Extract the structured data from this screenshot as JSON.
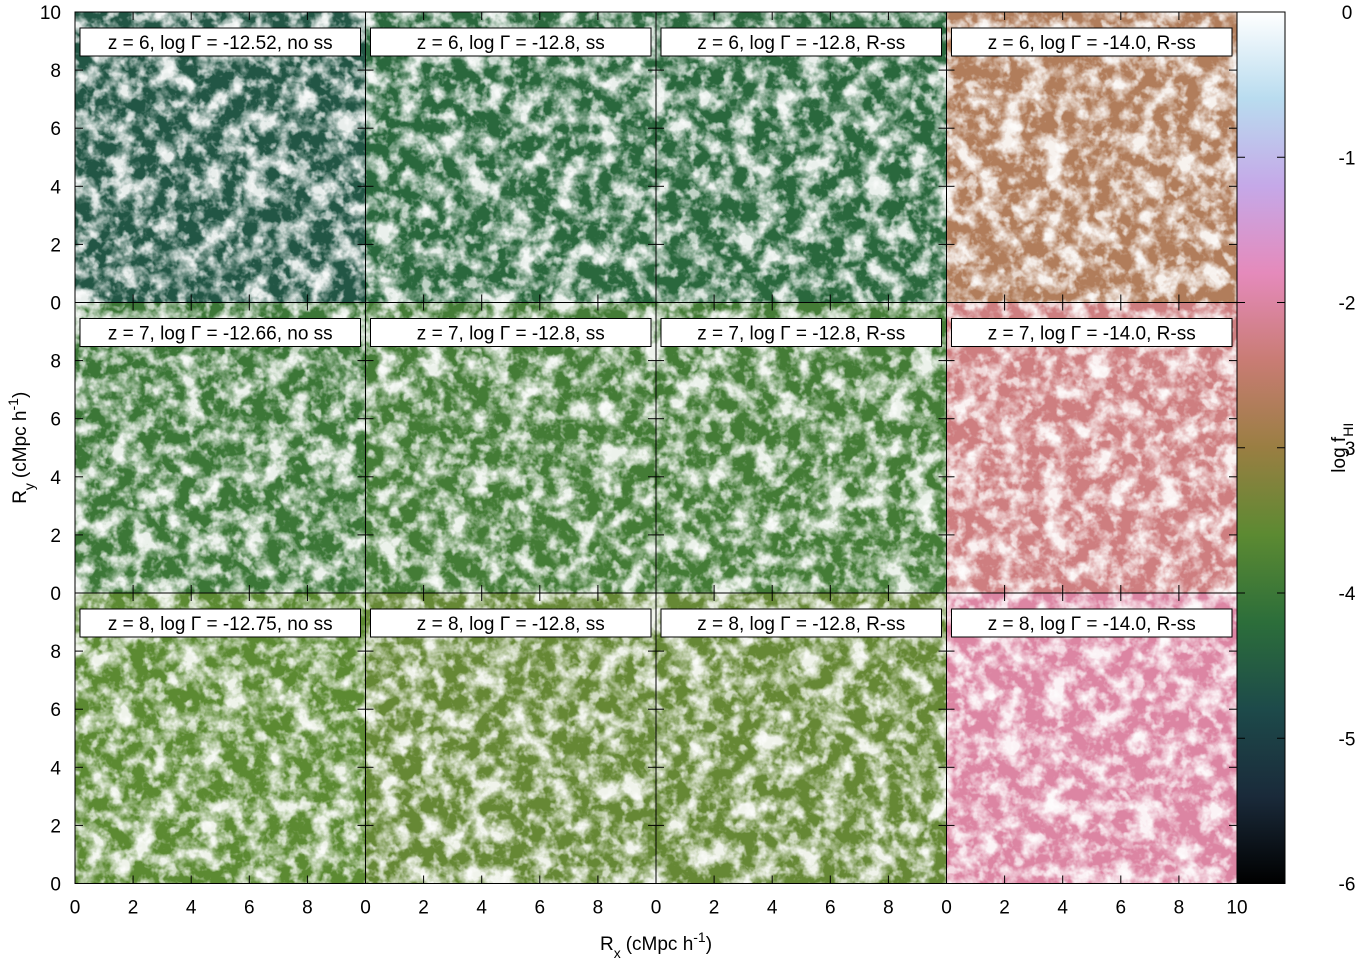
{
  "chart_data": {
    "type": "heatmap",
    "layout": {
      "rows": 3,
      "cols": 4
    },
    "xlabel": "R",
    "xlabel_sub": "x",
    "xlabel_unit": "(cMpc h",
    "xlabel_unit_sup": "-1",
    "xlabel_unit_close": ")",
    "ylabel": "R",
    "ylabel_sub": "y",
    "ylabel_unit": "(cMpc h",
    "ylabel_unit_sup": "-1",
    "ylabel_unit_close": ")",
    "xlim": [
      0,
      10
    ],
    "ylim": [
      0,
      10
    ],
    "x_ticks": [
      "0",
      "2",
      "4",
      "6",
      "8"
    ],
    "x_ticks_last_panel": [
      "0",
      "2",
      "4",
      "6",
      "8",
      "10"
    ],
    "y_ticks": [
      "0",
      "2",
      "4",
      "6",
      "8"
    ],
    "y_ticks_top_panel": [
      "0",
      "2",
      "4",
      "6",
      "8",
      "10"
    ],
    "colorbar": {
      "label": "log f",
      "label_sub": "HI",
      "range": [
        -6,
        0
      ],
      "ticks": [
        "0",
        "-1",
        "-2",
        "-3",
        "-4",
        "-5",
        "-6"
      ],
      "colors": [
        "#000000",
        "#1a2a3a",
        "#1d4a4a",
        "#2c6e3a",
        "#5c8a32",
        "#9a7e42",
        "#c97c74",
        "#e58abb",
        "#c5a8e8",
        "#b9dcef",
        "#ffffff"
      ]
    },
    "panels": [
      {
        "title": "z = 6, log Γ = -12.52, no ss",
        "z": 6,
        "log_gamma": -12.52,
        "model": "no ss",
        "mean_log_fHI": -4.6
      },
      {
        "title": "z = 6, log Γ = -12.8, ss",
        "z": 6,
        "log_gamma": -12.8,
        "model": "ss",
        "mean_log_fHI": -4.3
      },
      {
        "title": "z = 6, log Γ = -12.8, R-ss",
        "z": 6,
        "log_gamma": -12.8,
        "model": "R-ss",
        "mean_log_fHI": -4.3
      },
      {
        "title": "z = 6, log Γ = -14.0, R-ss",
        "z": 6,
        "log_gamma": -14.0,
        "model": "R-ss",
        "mean_log_fHI": -2.7
      },
      {
        "title": "z = 7, log Γ = -12.66, no ss",
        "z": 7,
        "log_gamma": -12.66,
        "model": "no ss",
        "mean_log_fHI": -4.0
      },
      {
        "title": "z = 7, log Γ = -12.8, ss",
        "z": 7,
        "log_gamma": -12.8,
        "model": "ss",
        "mean_log_fHI": -3.9
      },
      {
        "title": "z = 7, log Γ = -12.8, R-ss",
        "z": 7,
        "log_gamma": -12.8,
        "model": "R-ss",
        "mean_log_fHI": -3.9
      },
      {
        "title": "z = 7, log Γ = -14.0, R-ss",
        "z": 7,
        "log_gamma": -14.0,
        "model": "R-ss",
        "mean_log_fHI": -2.3
      },
      {
        "title": "z = 8, log Γ = -12.75, no ss",
        "z": 8,
        "log_gamma": -12.75,
        "model": "no ss",
        "mean_log_fHI": -3.6
      },
      {
        "title": "z = 8, log Γ = -12.8, ss",
        "z": 8,
        "log_gamma": -12.8,
        "model": "ss",
        "mean_log_fHI": -3.5
      },
      {
        "title": "z = 8, log Γ = -12.8, R-ss",
        "z": 8,
        "log_gamma": -12.8,
        "model": "R-ss",
        "mean_log_fHI": -3.5
      },
      {
        "title": "z = 8, log Γ = -14.0, R-ss",
        "z": 8,
        "log_gamma": -14.0,
        "model": "R-ss",
        "mean_log_fHI": -2.0
      }
    ]
  }
}
